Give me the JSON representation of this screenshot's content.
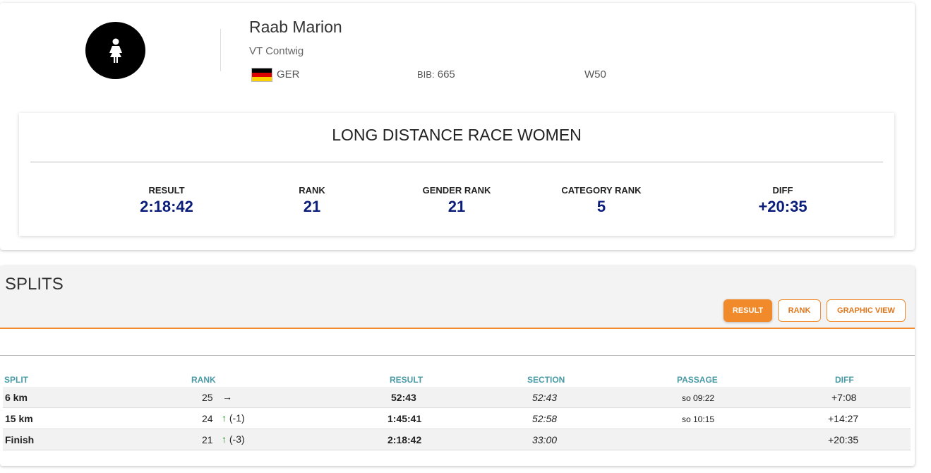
{
  "athlete": {
    "name": "Raab Marion",
    "club": "VT Contwig",
    "nation": "GER",
    "bib_label": "BIB:",
    "bib": "665",
    "category": "W50",
    "avatar_icon": "female-person-icon",
    "flag": "germany-flag-icon"
  },
  "race": {
    "title": "LONG DISTANCE RACE WOMEN",
    "stats": [
      {
        "label": "RESULT",
        "value": "2:18:42"
      },
      {
        "label": "RANK",
        "value": "21"
      },
      {
        "label": "GENDER RANK",
        "value": "21"
      },
      {
        "label": "CATEGORY RANK",
        "value": "5"
      },
      {
        "label": "DIFF",
        "value": "+20:35"
      }
    ]
  },
  "splits": {
    "title": "SPLITS",
    "buttons": {
      "result": "RESULT",
      "rank": "RANK",
      "graphic": "GRAPHIC VIEW"
    },
    "headers": {
      "split": "SPLIT",
      "rank": "RANK",
      "result": "RESULT",
      "section": "SECTION",
      "passage": "PASSAGE",
      "diff": "DIFF"
    },
    "rows": [
      {
        "split": "6 km",
        "rank": "25",
        "trend": "→",
        "trend_change": "",
        "result": "52:43",
        "section": "52:43",
        "passage": "so 09:22",
        "diff": "+7:08"
      },
      {
        "split": "15 km",
        "rank": "24",
        "trend": "↑",
        "trend_change": "(-1)",
        "result": "1:45:41",
        "section": "52:58",
        "passage": "so 10:15",
        "diff": "+14:27"
      },
      {
        "split": "Finish",
        "rank": "21",
        "trend": "↑",
        "trend_change": "(-3)",
        "result": "2:18:42",
        "section": "33:00",
        "passage": "",
        "diff": "+20:35"
      }
    ]
  },
  "colors": {
    "accent": "#f08a2a",
    "value_blue": "#0b1e7a",
    "header_teal": "#4a9aa6",
    "trend_up": "#1a8a1a"
  }
}
